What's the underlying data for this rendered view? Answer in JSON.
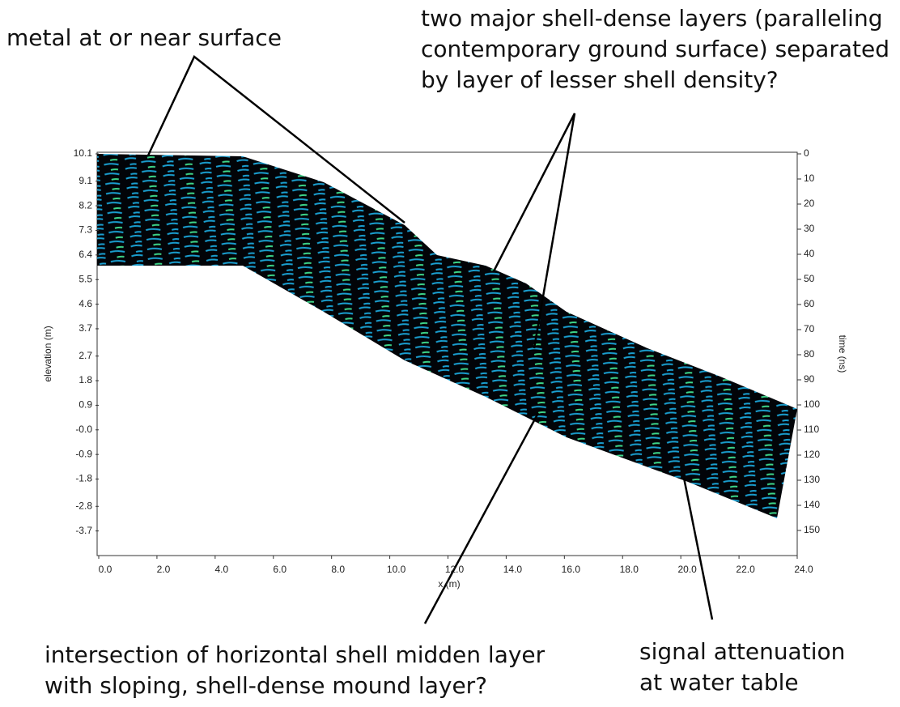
{
  "chart_data": {
    "type": "radargram",
    "x_label": "x (m)",
    "y_label": "elevation (m)",
    "y2_label": "time (ns)",
    "xlim": [
      0,
      24
    ],
    "xticks": [
      {
        "value": 0,
        "label": "0.0"
      },
      {
        "value": 2,
        "label": "2.0"
      },
      {
        "value": 4,
        "label": "4.0"
      },
      {
        "value": 6,
        "label": "6.0"
      },
      {
        "value": 8,
        "label": "8.0"
      },
      {
        "value": 10,
        "label": "10.0"
      },
      {
        "value": 12,
        "label": "12.0"
      },
      {
        "value": 14,
        "label": "14.0"
      },
      {
        "value": 16,
        "label": "16.0"
      },
      {
        "value": 18,
        "label": "18.0"
      },
      {
        "value": 20,
        "label": "20.0"
      },
      {
        "value": 22,
        "label": "22.0"
      },
      {
        "value": 24,
        "label": "24.0"
      }
    ],
    "ylim": [
      -4.6,
      10.1
    ],
    "yticks": [
      10.1,
      9.1,
      8.2,
      7.3,
      6.4,
      5.5,
      4.6,
      3.7,
      2.7,
      1.8,
      0.9,
      {
        "value": 0,
        "label": "-0.0"
      },
      -0.9,
      -1.8,
      -2.8,
      -3.7
    ],
    "y2lim": [
      0,
      160
    ],
    "y2_inverted": true,
    "y2ticks": [
      0,
      10,
      20,
      30,
      40,
      50,
      60,
      70,
      80,
      90,
      100,
      110,
      120,
      130,
      140,
      150
    ],
    "annotations": [
      {
        "lines": [
          "metal at or near surface"
        ]
      },
      {
        "lines": [
          "two major shell-dense layers (paralleling",
          "contemporary ground surface) separated",
          "by layer of lesser shell density?"
        ]
      },
      {
        "lines": [
          "intersection of horizontal shell midden layer",
          "with sloping, shell-dense mound layer?"
        ]
      },
      {
        "lines": [
          "signal attenuation",
          "at water table"
        ]
      }
    ]
  }
}
